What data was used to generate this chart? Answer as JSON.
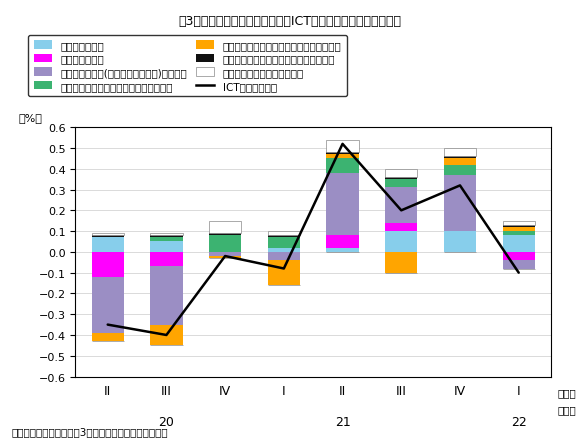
{
  "title": "第3次産業活動指数総合に占めるICT関連サービス指数の寄与度",
  "source": "（出所）経済産業省「第3次産業活動指数」より作成。",
  "xlabel_periods": [
    "II",
    "III",
    "IV",
    "I",
    "II",
    "III",
    "IV",
    "I"
  ],
  "ylabel": "（%）",
  "ylim": [
    -0.6,
    0.6
  ],
  "yticks": [
    -0.6,
    -0.5,
    -0.4,
    -0.3,
    -0.2,
    -0.1,
    0.0,
    0.1,
    0.2,
    0.3,
    0.4,
    0.5,
    0.6
  ],
  "series_order": [
    "通信業",
    "放送業",
    "情報サービス業",
    "インターネット附随",
    "コンテンツ制作",
    "情報関連機器リース",
    "インターネット広告"
  ],
  "series": {
    "通信業": {
      "color": "#87CEEB",
      "values": [
        0.07,
        0.05,
        0.0,
        0.02,
        0.02,
        0.1,
        0.1,
        0.08
      ]
    },
    "放送業": {
      "color": "#FF00FF",
      "values": [
        -0.12,
        -0.07,
        0.0,
        0.0,
        0.06,
        0.04,
        0.0,
        -0.04
      ]
    },
    "情報サービス業": {
      "color": "#9B8EC4",
      "values": [
        -0.27,
        -0.28,
        -0.02,
        -0.04,
        0.3,
        0.17,
        0.27,
        -0.04
      ]
    },
    "インターネット附随": {
      "color": "#3CB371",
      "values": [
        0.0,
        0.02,
        0.08,
        0.05,
        0.07,
        0.04,
        0.05,
        0.02
      ]
    },
    "コンテンツ制作": {
      "color": "#FFA500",
      "values": [
        -0.04,
        -0.1,
        -0.01,
        -0.12,
        0.02,
        -0.1,
        0.03,
        0.02
      ]
    },
    "情報関連機器リース": {
      "color": "#111111",
      "values": [
        0.01,
        0.01,
        0.01,
        0.01,
        0.01,
        0.01,
        0.01,
        0.01
      ]
    },
    "インターネット広告": {
      "color": "#FFFFFF",
      "values": [
        0.01,
        0.01,
        0.06,
        0.02,
        0.06,
        0.04,
        0.04,
        0.02
      ]
    }
  },
  "line": {
    "label": "ICT関連・寄与度",
    "color": "#000000",
    "values": [
      -0.35,
      -0.4,
      -0.02,
      -0.08,
      0.52,
      0.2,
      0.32,
      -0.1
    ]
  },
  "legend": [
    {
      "label": "通信業・寄与度",
      "color": "#87CEEB",
      "type": "bar"
    },
    {
      "label": "放送業・寄与度",
      "color": "#FF00FF",
      "type": "bar"
    },
    {
      "label": "情報サービス業(除くゲームソフト)・寄与度",
      "color": "#9B8EC4",
      "type": "bar"
    },
    {
      "label": "インターネット附随サービス業・寄与度",
      "color": "#3CB371",
      "type": "bar"
    },
    {
      "label": "コンテンツ制作・配給・レンタル・寄与度",
      "color": "#FFA500",
      "type": "bar"
    },
    {
      "label": "情報関連機器リース・レンタル・寄与度",
      "color": "#111111",
      "type": "bar"
    },
    {
      "label": "インターネット広告・寄与度",
      "color": "#FFFFFF",
      "type": "bar"
    },
    {
      "label": "ICT関連・寄与度",
      "color": "#000000",
      "type": "line"
    }
  ]
}
